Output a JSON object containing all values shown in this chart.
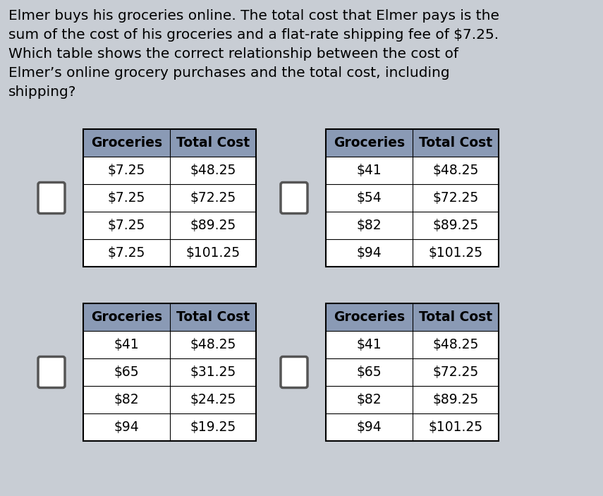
{
  "background_color": "#c8cdd4",
  "text_color": "#000000",
  "question_lines": [
    "Elmer buys his groceries online. The total cost that Elmer pays is the",
    "sum of the cost of his groceries and a flat-rate shipping fee of $7.25.",
    "Which table shows the correct relationship between the cost of",
    "Elmer’s online grocery purchases and the total cost, including",
    "shipping?"
  ],
  "tables": [
    {
      "id": "top_left",
      "headers": [
        "Groceries",
        "Total Cost"
      ],
      "rows": [
        [
          "$7.25",
          "$48.25"
        ],
        [
          "$7.25",
          "$72.25"
        ],
        [
          "$7.25",
          "$89.25"
        ],
        [
          "$7.25",
          "$101.25"
        ]
      ]
    },
    {
      "id": "top_right",
      "headers": [
        "Groceries",
        "Total Cost"
      ],
      "rows": [
        [
          "$41",
          "$48.25"
        ],
        [
          "$54",
          "$72.25"
        ],
        [
          "$82",
          "$89.25"
        ],
        [
          "$94",
          "$101.25"
        ]
      ]
    },
    {
      "id": "bot_left",
      "headers": [
        "Groceries",
        "Total Cost"
      ],
      "rows": [
        [
          "$41",
          "$48.25"
        ],
        [
          "$65",
          "$31.25"
        ],
        [
          "$82",
          "$24.25"
        ],
        [
          "$94",
          "$19.25"
        ]
      ]
    },
    {
      "id": "bot_right",
      "headers": [
        "Groceries",
        "Total Cost"
      ],
      "rows": [
        [
          "$41",
          "$48.25"
        ],
        [
          "$65",
          "$72.25"
        ],
        [
          "$82",
          "$89.25"
        ],
        [
          "$94",
          "$101.25"
        ]
      ]
    }
  ],
  "header_bg": "#8a9ab5",
  "table_bg": "#ffffff",
  "font_size_question": 14.5,
  "font_size_table": 13.5,
  "font_size_header": 13.5
}
